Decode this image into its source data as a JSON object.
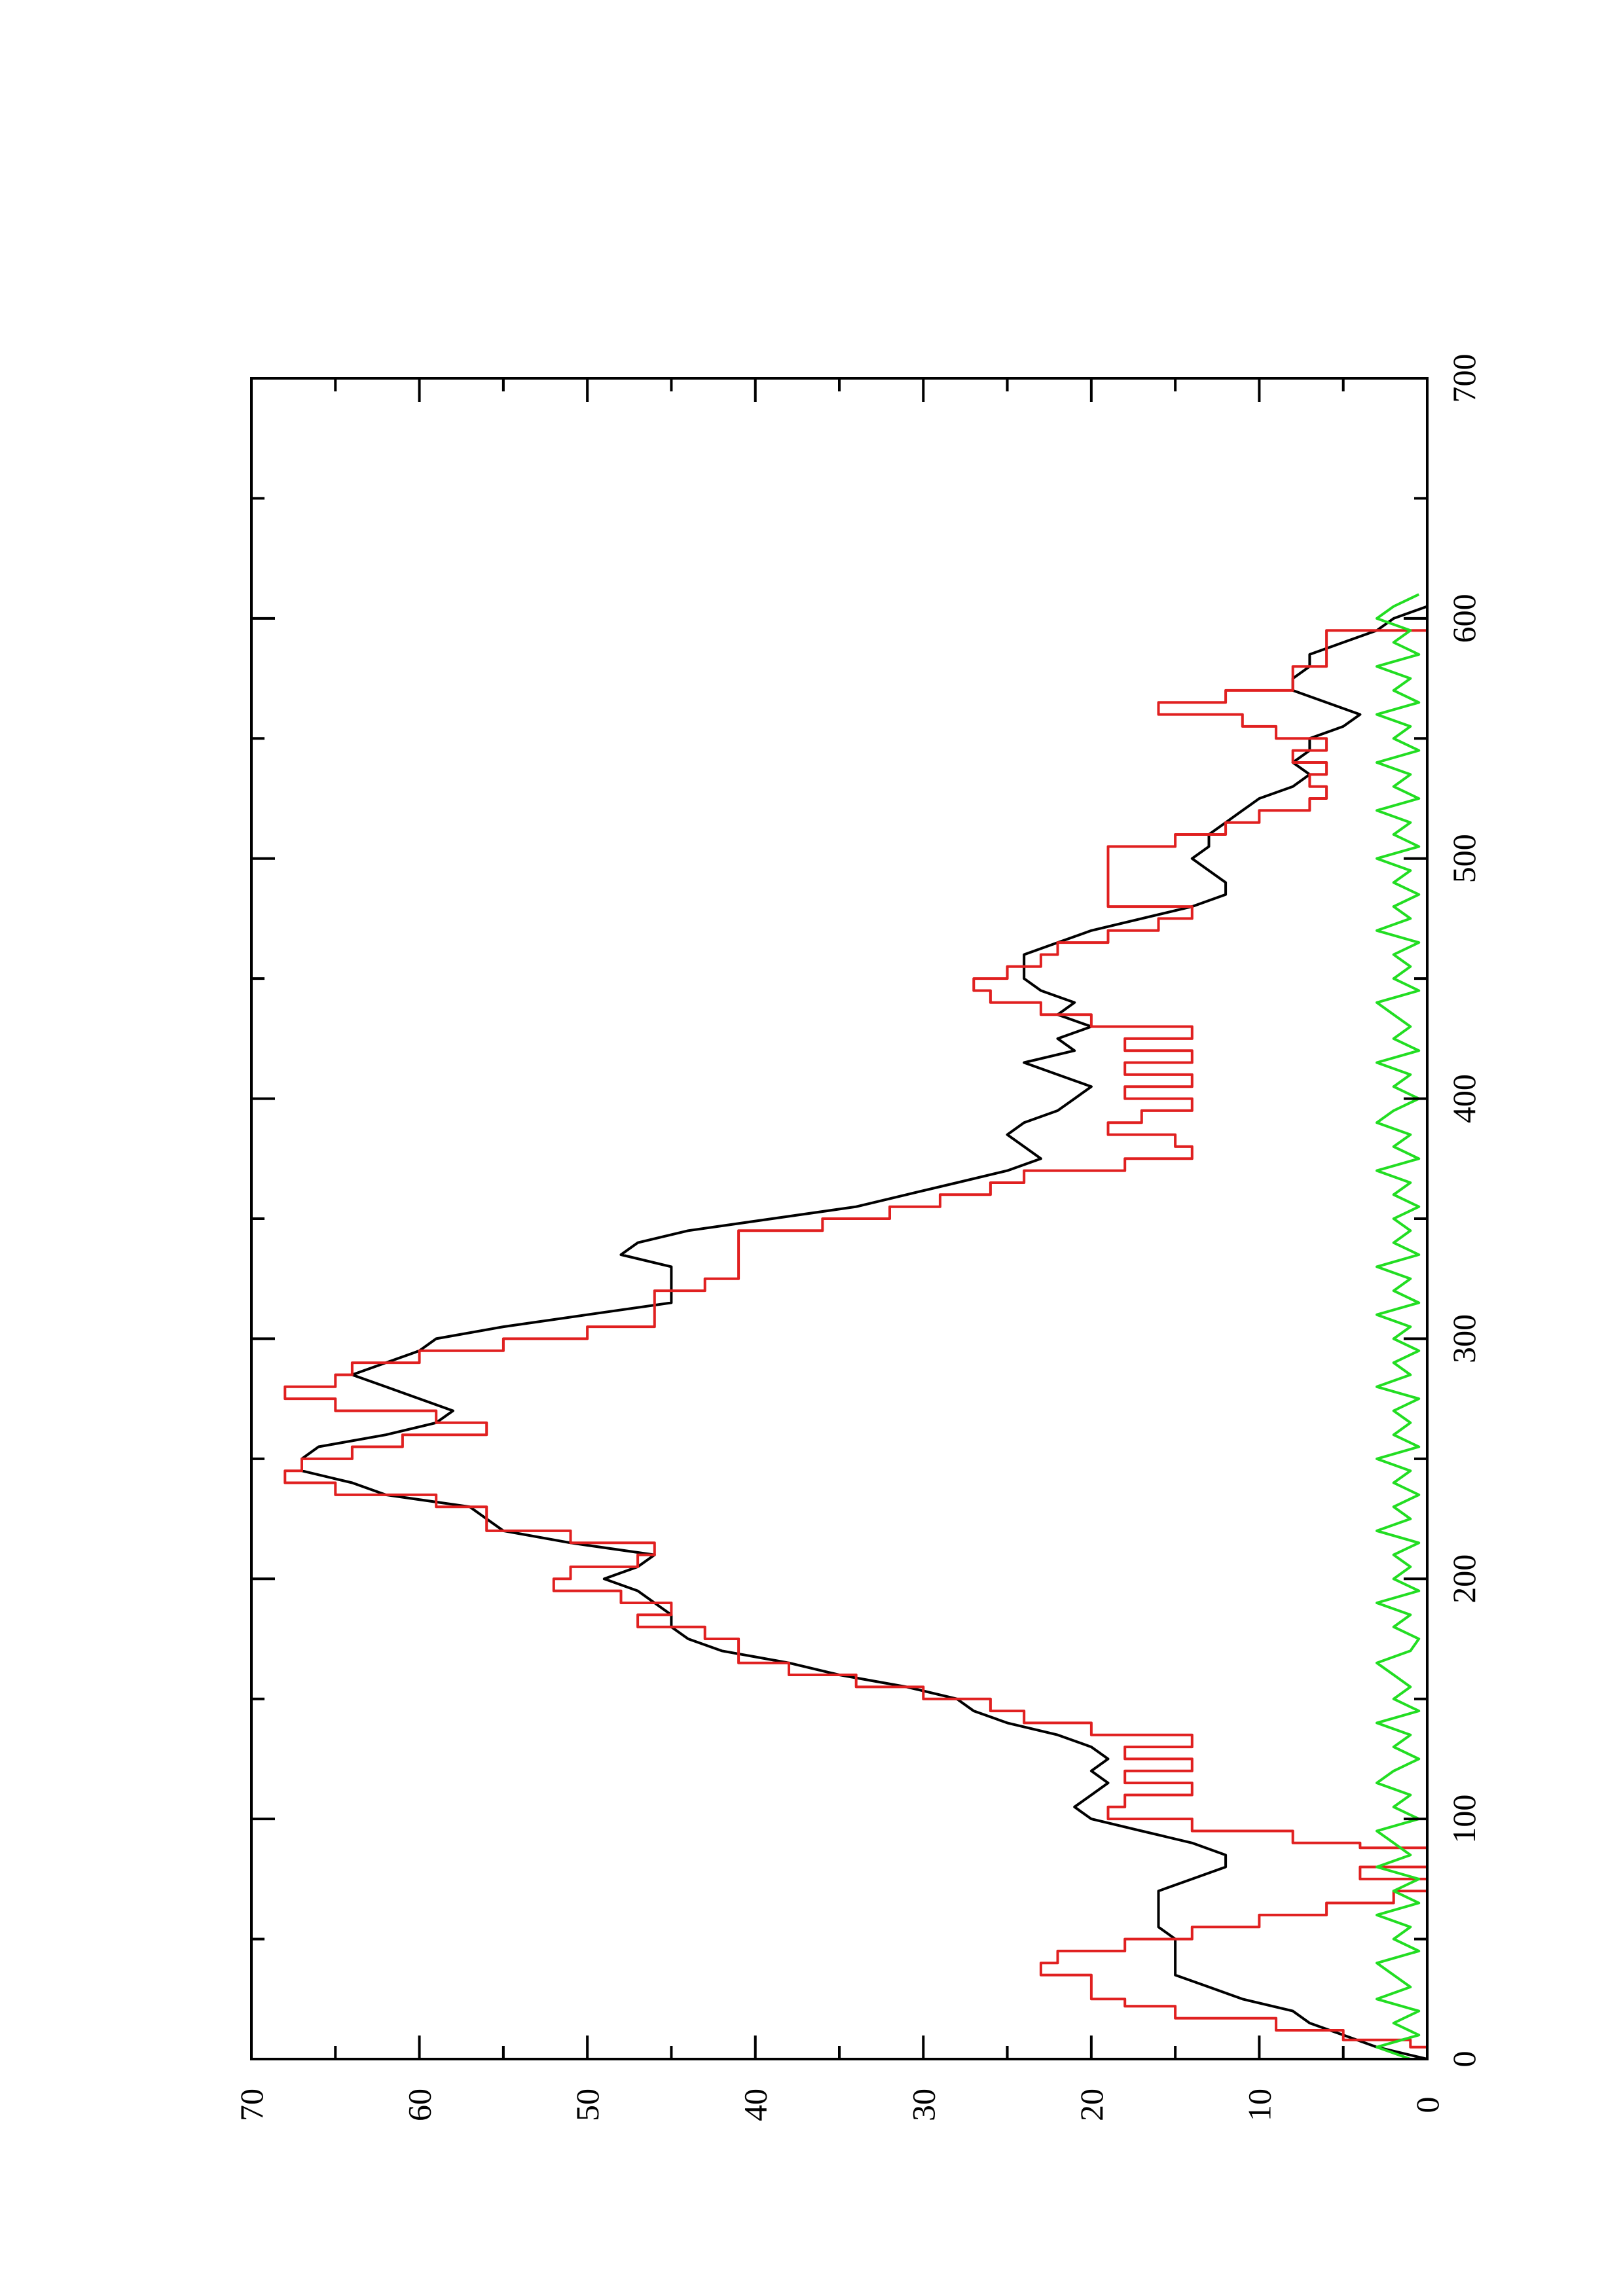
{
  "chart_data": {
    "type": "line",
    "title": "",
    "xlabel": "",
    "ylabel": "",
    "xlim": [
      0,
      700
    ],
    "ylim": [
      0,
      70
    ],
    "x_ticks": [
      0,
      100,
      200,
      300,
      400,
      500,
      600,
      700
    ],
    "y_ticks": [
      0,
      10,
      20,
      30,
      40,
      50,
      60,
      70
    ],
    "x_tick_labels": [
      "0",
      "100",
      "200",
      "300",
      "400",
      "500",
      "600",
      "700"
    ],
    "y_tick_labels": [
      "0",
      "10",
      "20",
      "30",
      "40",
      "50",
      "60",
      "70"
    ],
    "grid": false,
    "legend": "none",
    "orientation": "rotated 90 degrees counter-clockwise on the page",
    "series": [
      {
        "color": "#000000",
        "style": "line",
        "x": [
          0,
          5,
          10,
          15,
          20,
          25,
          30,
          35,
          40,
          45,
          50,
          55,
          60,
          65,
          70,
          75,
          80,
          85,
          90,
          95,
          100,
          105,
          110,
          115,
          120,
          125,
          130,
          135,
          140,
          145,
          150,
          155,
          160,
          165,
          170,
          175,
          180,
          185,
          190,
          195,
          200,
          205,
          210,
          215,
          220,
          225,
          230,
          235,
          240,
          245,
          250,
          255,
          260,
          265,
          270,
          275,
          280,
          285,
          290,
          295,
          300,
          305,
          310,
          315,
          320,
          325,
          330,
          335,
          340,
          345,
          350,
          355,
          360,
          365,
          370,
          375,
          380,
          385,
          390,
          395,
          400,
          405,
          410,
          415,
          420,
          425,
          430,
          435,
          440,
          445,
          450,
          455,
          460,
          465,
          470,
          475,
          480,
          485,
          490,
          495,
          500,
          505,
          510,
          515,
          520,
          525,
          530,
          535,
          540,
          545,
          550,
          555,
          560,
          565,
          570,
          575,
          580,
          585,
          590,
          595,
          600,
          605
        ],
        "y": [
          0,
          3,
          5,
          7,
          8,
          11,
          13,
          15,
          15,
          15,
          15,
          16,
          16,
          16,
          16,
          14,
          12,
          12,
          14,
          17,
          20,
          21,
          20,
          19,
          20,
          19,
          20,
          22,
          25,
          27,
          28,
          31,
          35,
          38,
          42,
          44,
          45,
          45,
          46,
          47,
          49,
          47,
          46,
          51,
          55,
          56,
          57,
          62,
          64,
          67,
          67,
          66,
          62,
          59,
          58,
          60,
          62,
          64,
          62,
          60,
          59,
          55,
          50,
          45,
          45,
          45,
          45,
          48,
          47,
          44,
          39,
          34,
          31,
          28,
          25,
          23,
          24,
          25,
          24,
          22,
          21,
          20,
          22,
          24,
          21,
          22,
          20,
          22,
          21,
          23,
          24,
          24,
          24,
          22,
          20,
          17,
          14,
          12,
          12,
          13,
          14,
          13,
          13,
          12,
          11,
          10,
          8,
          7,
          8,
          7,
          7,
          5,
          4,
          6,
          8,
          8,
          7,
          7,
          5,
          3,
          2,
          0
        ]
      },
      {
        "color": "#e02020",
        "style": "step",
        "x": [
          0,
          5,
          8,
          12,
          17,
          22,
          25,
          30,
          35,
          40,
          45,
          50,
          55,
          60,
          65,
          70,
          75,
          80,
          85,
          88,
          90,
          95,
          100,
          105,
          110,
          115,
          120,
          125,
          130,
          135,
          140,
          145,
          150,
          155,
          160,
          165,
          170,
          175,
          180,
          185,
          190,
          195,
          200,
          205,
          210,
          215,
          220,
          225,
          230,
          235,
          240,
          245,
          250,
          255,
          260,
          265,
          270,
          275,
          280,
          285,
          290,
          295,
          300,
          305,
          310,
          315,
          320,
          325,
          330,
          335,
          340,
          345,
          350,
          355,
          360,
          365,
          370,
          375,
          380,
          385,
          390,
          395,
          400,
          405,
          410,
          415,
          420,
          425,
          430,
          435,
          440,
          445,
          450,
          455,
          460,
          465,
          470,
          475,
          480,
          485,
          490,
          495,
          500,
          505,
          510,
          515,
          520,
          525,
          530,
          535,
          540,
          545,
          550,
          555,
          560,
          565,
          570,
          575,
          580,
          585,
          590,
          595,
          600,
          605
        ],
        "y": [
          0,
          1,
          5,
          9,
          15,
          18,
          20,
          20,
          23,
          22,
          18,
          14,
          10,
          6,
          2,
          0,
          4,
          0,
          0,
          4,
          8,
          14,
          19,
          18,
          14,
          18,
          14,
          18,
          14,
          20,
          24,
          26,
          30,
          34,
          38,
          41,
          41,
          43,
          47,
          45,
          48,
          52,
          51,
          47,
          46,
          51,
          56,
          56,
          59,
          65,
          68,
          67,
          64,
          61,
          56,
          59,
          65,
          68,
          65,
          64,
          60,
          55,
          50,
          46,
          46,
          46,
          43,
          41,
          41,
          41,
          41,
          36,
          32,
          29,
          26,
          24,
          18,
          14,
          15,
          19,
          17,
          14,
          18,
          14,
          18,
          14,
          18,
          14,
          20,
          23,
          26,
          27,
          25,
          23,
          22,
          19,
          16,
          14,
          19,
          19,
          19,
          19,
          19,
          15,
          12,
          10,
          7,
          6,
          7,
          6,
          8,
          6,
          9,
          11,
          16,
          12,
          8,
          8,
          6,
          6,
          6,
          0,
          0,
          0
        ]
      },
      {
        "color": "#22dd22",
        "style": "line",
        "x": [
          0,
          5,
          10,
          15,
          20,
          25,
          30,
          35,
          40,
          45,
          50,
          55,
          60,
          65,
          70,
          75,
          80,
          85,
          90,
          95,
          100,
          105,
          110,
          115,
          120,
          125,
          130,
          135,
          140,
          145,
          150,
          155,
          160,
          165,
          170,
          175,
          180,
          185,
          190,
          195,
          200,
          205,
          210,
          215,
          220,
          225,
          230,
          235,
          240,
          245,
          250,
          255,
          260,
          265,
          270,
          275,
          280,
          285,
          290,
          295,
          300,
          305,
          310,
          315,
          320,
          325,
          330,
          335,
          340,
          345,
          350,
          355,
          360,
          365,
          370,
          375,
          380,
          385,
          390,
          395,
          400,
          405,
          410,
          415,
          420,
          425,
          430,
          435,
          440,
          445,
          450,
          455,
          460,
          465,
          470,
          475,
          480,
          485,
          490,
          495,
          500,
          505,
          510,
          515,
          520,
          525,
          530,
          535,
          540,
          545,
          550,
          555,
          560,
          565,
          570,
          575,
          580,
          585,
          590,
          595,
          600,
          605,
          610
        ],
        "y": [
          1,
          3,
          0.5,
          2,
          0.5,
          3,
          1,
          2,
          3,
          0.5,
          2,
          1,
          3,
          0.5,
          2,
          0.5,
          3,
          1,
          2,
          3,
          0.5,
          2,
          1,
          3,
          2,
          0.5,
          2,
          1,
          3,
          0.5,
          2,
          1,
          2,
          3,
          1,
          0.5,
          2,
          1,
          3,
          0.5,
          2,
          1,
          2,
          0.5,
          3,
          1,
          2,
          0.5,
          2,
          1,
          3,
          0.5,
          2,
          1,
          2,
          0.5,
          3,
          1,
          2,
          0.5,
          2,
          1,
          3,
          0.5,
          2,
          1,
          3,
          0.5,
          2,
          1,
          2,
          0.5,
          2,
          1,
          3,
          0.5,
          2,
          1,
          3,
          2,
          0.5,
          2,
          1,
          3,
          0.5,
          2,
          1,
          2,
          3,
          0.5,
          2,
          1,
          2,
          0.5,
          3,
          1,
          2,
          0.5,
          2,
          1,
          3,
          0.5,
          2,
          1,
          3,
          0.5,
          2,
          1,
          3,
          0.5,
          2,
          1,
          3,
          0.5,
          2,
          1,
          3,
          0.5,
          2,
          1,
          3,
          2,
          0.5
        ]
      }
    ]
  }
}
